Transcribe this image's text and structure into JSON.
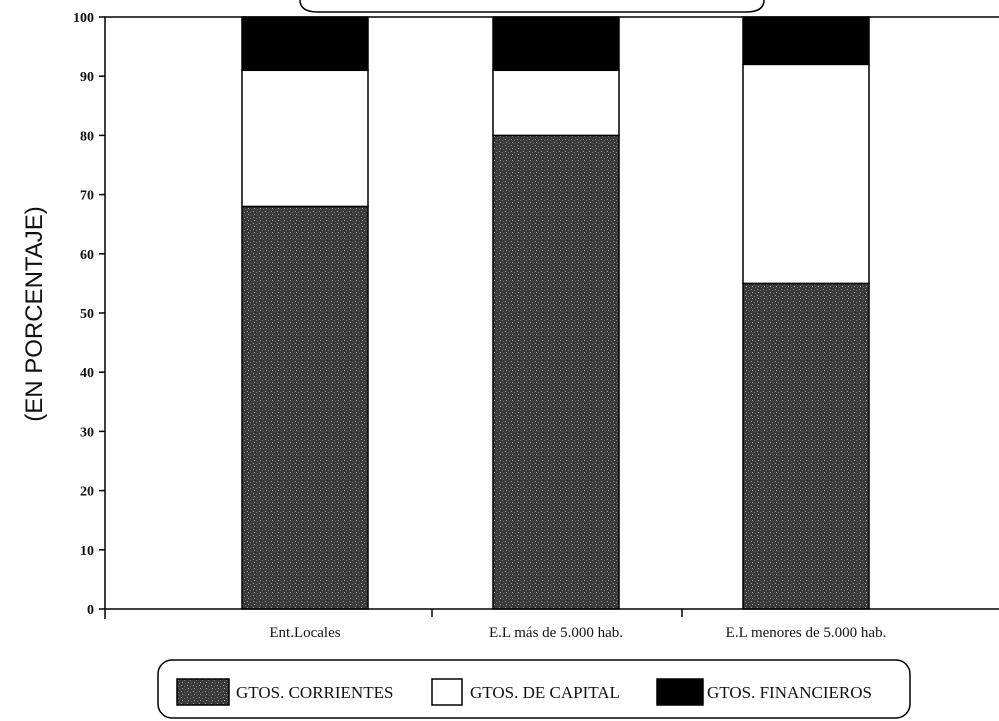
{
  "chart_data": {
    "type": "bar",
    "stacked": true,
    "categories": [
      "Ent.Locales",
      "E.L más de 5.000 hab.",
      "E.L menores de 5.000 hab."
    ],
    "series": [
      {
        "name": "GTOS. CORRIENTES",
        "values": [
          68,
          80,
          55
        ],
        "color": "#3a3a3a"
      },
      {
        "name": "GTOS. DE CAPITAL",
        "values": [
          23,
          11,
          37
        ],
        "color": "#ffffff"
      },
      {
        "name": "GTOS. FINANCIEROS",
        "values": [
          9,
          9,
          8
        ],
        "color": "#000000"
      }
    ],
    "ylabel": "(EN PORCENTAJE)",
    "ylim": [
      0,
      100
    ],
    "yticks": [
      "0",
      "10",
      "20",
      "30",
      "40",
      "50",
      "60",
      "70",
      "80",
      "90",
      "100"
    ],
    "grid": false,
    "legend_position": "bottom"
  }
}
